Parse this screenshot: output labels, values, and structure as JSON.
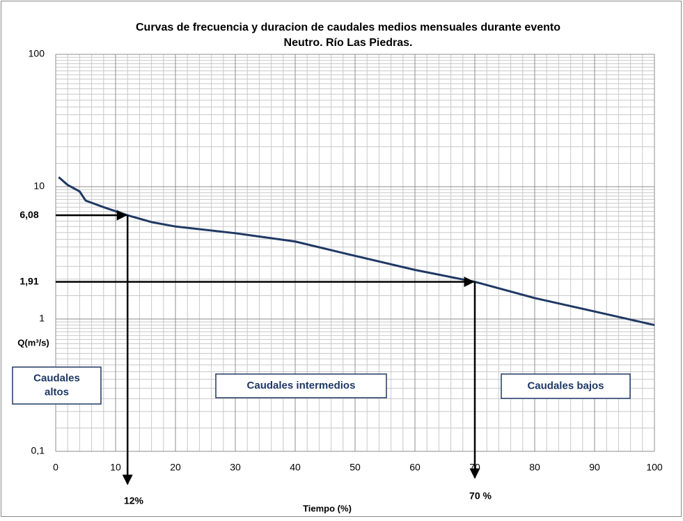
{
  "chart_data": {
    "type": "line",
    "title": [
      "Curvas de frecuencia y duracion de caudales medios mensuales durante evento",
      "Neutro. Río Las Piedras."
    ],
    "x_label": "Tiempo (%)",
    "y_label": "Q(m³/s)",
    "log_y": true,
    "grid": true,
    "xlim": [
      0,
      100
    ],
    "ylim": [
      0.1,
      100
    ],
    "xticks": [
      0,
      10,
      20,
      30,
      40,
      50,
      60,
      70,
      80,
      90,
      100
    ],
    "yticks": [
      {
        "value": 0.1,
        "label": "0,1"
      },
      1,
      10,
      100
    ],
    "series": [
      {
        "color": "#1f3864",
        "x": [
          0.5,
          2,
          4,
          5,
          8,
          12,
          16,
          20,
          30,
          40,
          50,
          60,
          70,
          80,
          90,
          100
        ],
        "values": [
          11.8,
          10.3,
          9.2,
          7.85,
          7.0,
          6.08,
          5.4,
          5.0,
          4.45,
          3.85,
          3.0,
          2.35,
          1.91,
          1.44,
          1.14,
          0.9
        ]
      }
    ],
    "markers": [
      {
        "x": 12,
        "y": 6.08,
        "y_label": "6,08",
        "x_label": "12%"
      },
      {
        "x": 70,
        "y": 1.91,
        "y_label": "1,91",
        "x_label": "70 %"
      }
    ],
    "regions": [
      [
        "Caudales",
        "altos"
      ],
      [
        "Caudales intermedios"
      ],
      [
        "Caudales bajos"
      ]
    ]
  }
}
